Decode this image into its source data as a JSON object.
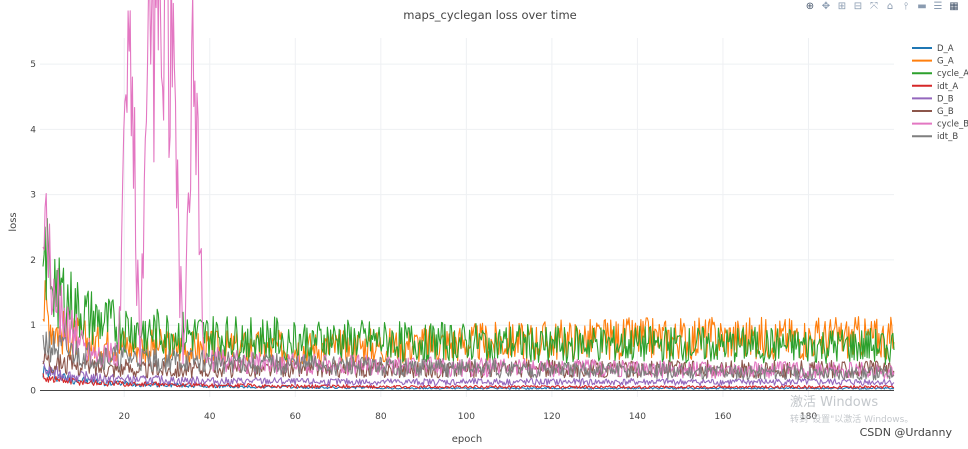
{
  "toolbar": {
    "buttons": [
      {
        "name": "zoom-icon",
        "glyph": "⊕"
      },
      {
        "name": "pan-icon",
        "glyph": "✥"
      },
      {
        "name": "zoom-in-icon",
        "glyph": "⊞"
      },
      {
        "name": "zoom-out-icon",
        "glyph": "⊟"
      },
      {
        "name": "autoscale-icon",
        "glyph": "⤧"
      },
      {
        "name": "reset-axes-icon",
        "glyph": "⌂"
      },
      {
        "name": "spike-lines-icon",
        "glyph": "⫯"
      },
      {
        "name": "hover-closest-icon",
        "glyph": "▬"
      },
      {
        "name": "hover-compare-icon",
        "glyph": "☰"
      },
      {
        "name": "plotly-logo-icon",
        "glyph": "▦"
      }
    ]
  },
  "watermark": {
    "line1": "激活 Windows",
    "line2": "转到\"设置\"以激活 Windows。"
  },
  "credit": "CSDN @Urdanny",
  "chart_data": {
    "type": "line",
    "title": "maps_cyclegan loss over time",
    "xlabel": "epoch",
    "ylabel": "loss",
    "xlim": [
      0.3,
      200
    ],
    "ylim": [
      -0.1,
      5.4
    ],
    "x_ticks": [
      20,
      40,
      60,
      80,
      100,
      120,
      140,
      160,
      180
    ],
    "y_ticks": [
      0,
      1,
      2,
      3,
      4,
      5
    ],
    "grid": true,
    "legend_position": "top-right",
    "x_step": 0.5,
    "x_start": 1,
    "series": [
      {
        "name": "D_A",
        "color": "#1f77b4",
        "values": [
          0.28,
          0.22,
          0.18,
          0.15,
          0.14,
          0.12,
          0.11,
          0.1,
          0.1,
          0.09,
          0.09,
          0.08,
          0.08,
          0.07,
          0.07,
          0.06,
          0.06,
          0.06,
          0.05,
          0.05,
          0.05,
          0.05,
          0.05,
          0.05,
          0.04,
          0.04,
          0.04,
          0.04,
          0.04,
          0.04,
          0.04,
          0.04,
          0.03,
          0.03,
          0.03,
          0.03,
          0.03,
          0.03,
          0.03,
          0.03,
          0.03,
          0.03,
          0.03,
          0.03,
          0.03,
          0.03,
          0.03,
          0.03,
          0.03,
          0.03,
          0.03,
          0.03,
          0.03,
          0.03,
          0.03,
          0.03,
          0.03,
          0.03,
          0.03,
          0.03,
          0.03,
          0.03,
          0.03,
          0.03,
          0.03,
          0.03,
          0.03,
          0.03,
          0.03,
          0.03,
          0.03,
          0.03,
          0.03,
          0.03,
          0.03,
          0.03,
          0.03,
          0.03,
          0.03,
          0.03
        ]
      },
      {
        "name": "G_A",
        "color": "#ff7f0e",
        "values": [
          1.2,
          0.9,
          0.8,
          0.75,
          0.7,
          0.68,
          0.66,
          0.65,
          0.64,
          0.63,
          0.62,
          0.62,
          0.61,
          0.61,
          0.6,
          0.6,
          0.6,
          0.6,
          0.6,
          0.6,
          0.6,
          0.6,
          0.6,
          0.6,
          0.6,
          0.6,
          0.61,
          0.61,
          0.62,
          0.62,
          0.63,
          0.63,
          0.63,
          0.64,
          0.64,
          0.65,
          0.65,
          0.66,
          0.66,
          0.67,
          0.67,
          0.68,
          0.68,
          0.69,
          0.69,
          0.7,
          0.7,
          0.7,
          0.71,
          0.71,
          0.71,
          0.72,
          0.72,
          0.72,
          0.72,
          0.73,
          0.73,
          0.73,
          0.73,
          0.73,
          0.73,
          0.74,
          0.74,
          0.74,
          0.74,
          0.74,
          0.74,
          0.74,
          0.74,
          0.74,
          0.74,
          0.74,
          0.74,
          0.74,
          0.74,
          0.74,
          0.74,
          0.74,
          0.74,
          0.74
        ]
      },
      {
        "name": "cycle_A",
        "color": "#2ca02c",
        "values": [
          1.9,
          1.6,
          1.3,
          1.15,
          1.05,
          0.98,
          0.93,
          0.9,
          0.87,
          0.85,
          0.83,
          0.81,
          0.8,
          0.79,
          0.78,
          0.77,
          0.76,
          0.75,
          0.75,
          0.74,
          0.74,
          0.73,
          0.73,
          0.72,
          0.72,
          0.71,
          0.71,
          0.71,
          0.7,
          0.7,
          0.7,
          0.69,
          0.69,
          0.69,
          0.68,
          0.68,
          0.68,
          0.68,
          0.67,
          0.67,
          0.67,
          0.67,
          0.66,
          0.66,
          0.66,
          0.66,
          0.66,
          0.65,
          0.65,
          0.65,
          0.65,
          0.65,
          0.65,
          0.64,
          0.64,
          0.64,
          0.64,
          0.64,
          0.64,
          0.64,
          0.63,
          0.63,
          0.63,
          0.63,
          0.63,
          0.63,
          0.63,
          0.63,
          0.63,
          0.62,
          0.62,
          0.62,
          0.62,
          0.62,
          0.62,
          0.62,
          0.62,
          0.62,
          0.62,
          0.62
        ]
      },
      {
        "name": "idt_A",
        "color": "#d62728",
        "values": [
          0.2,
          0.16,
          0.14,
          0.13,
          0.12,
          0.11,
          0.1,
          0.1,
          0.09,
          0.09,
          0.09,
          0.08,
          0.08,
          0.08,
          0.08,
          0.07,
          0.07,
          0.07,
          0.07,
          0.07,
          0.06,
          0.06,
          0.06,
          0.06,
          0.06,
          0.06,
          0.06,
          0.06,
          0.06,
          0.06,
          0.05,
          0.05,
          0.05,
          0.05,
          0.05,
          0.05,
          0.05,
          0.05,
          0.05,
          0.05,
          0.05,
          0.05,
          0.05,
          0.05,
          0.05,
          0.05,
          0.05,
          0.05,
          0.05,
          0.05,
          0.05,
          0.05,
          0.05,
          0.05,
          0.05,
          0.05,
          0.05,
          0.05,
          0.05,
          0.05,
          0.05,
          0.05,
          0.05,
          0.05,
          0.05,
          0.05,
          0.05,
          0.05,
          0.05,
          0.05,
          0.05,
          0.05,
          0.05,
          0.05,
          0.05,
          0.05,
          0.05,
          0.05,
          0.05,
          0.05
        ]
      },
      {
        "name": "D_B",
        "color": "#9467bd",
        "values": [
          0.3,
          0.25,
          0.22,
          0.2,
          0.19,
          0.18,
          0.17,
          0.16,
          0.16,
          0.15,
          0.15,
          0.15,
          0.14,
          0.14,
          0.14,
          0.14,
          0.13,
          0.13,
          0.13,
          0.13,
          0.13,
          0.13,
          0.13,
          0.12,
          0.12,
          0.12,
          0.12,
          0.12,
          0.12,
          0.12,
          0.12,
          0.12,
          0.12,
          0.12,
          0.12,
          0.12,
          0.12,
          0.12,
          0.12,
          0.12,
          0.12,
          0.12,
          0.12,
          0.12,
          0.12,
          0.12,
          0.12,
          0.12,
          0.12,
          0.12,
          0.12,
          0.12,
          0.12,
          0.12,
          0.12,
          0.12,
          0.12,
          0.12,
          0.12,
          0.12,
          0.12,
          0.12,
          0.12,
          0.12,
          0.12,
          0.12,
          0.12,
          0.12,
          0.12,
          0.12,
          0.12,
          0.12,
          0.12,
          0.12,
          0.12,
          0.12,
          0.12,
          0.12,
          0.12,
          0.12
        ]
      },
      {
        "name": "G_B",
        "color": "#8c564b",
        "values": [
          0.5,
          0.42,
          0.38,
          0.35,
          0.34,
          0.33,
          0.32,
          0.31,
          0.31,
          0.3,
          0.3,
          0.3,
          0.3,
          0.3,
          0.3,
          0.3,
          0.3,
          0.3,
          0.3,
          0.3,
          0.3,
          0.3,
          0.3,
          0.3,
          0.3,
          0.3,
          0.3,
          0.3,
          0.3,
          0.3,
          0.3,
          0.3,
          0.3,
          0.3,
          0.3,
          0.3,
          0.3,
          0.3,
          0.3,
          0.3,
          0.3,
          0.3,
          0.3,
          0.3,
          0.3,
          0.3,
          0.3,
          0.3,
          0.3,
          0.3,
          0.3,
          0.3,
          0.3,
          0.3,
          0.3,
          0.3,
          0.3,
          0.3,
          0.3,
          0.3,
          0.3,
          0.3,
          0.3,
          0.3,
          0.3,
          0.3,
          0.3,
          0.3,
          0.3,
          0.3,
          0.3,
          0.3,
          0.3,
          0.3,
          0.3,
          0.3,
          0.3,
          0.3,
          0.3,
          0.3
        ]
      },
      {
        "name": "cycle_B",
        "color": "#e377c2",
        "values": [
          2.2,
          1.4,
          1.0,
          0.8,
          0.6,
          0.55,
          0.5,
          0.48,
          5.2,
          0.46,
          5.0,
          4.8,
          4.65,
          0.45,
          4.35,
          0.44,
          0.43,
          0.42,
          0.41,
          0.4,
          0.4,
          0.39,
          0.39,
          0.38,
          0.38,
          0.37,
          0.37,
          0.36,
          0.36,
          0.36,
          0.35,
          0.35,
          0.35,
          0.34,
          0.34,
          0.34,
          0.34,
          0.33,
          0.33,
          0.33,
          0.33,
          0.32,
          0.32,
          0.32,
          0.32,
          0.32,
          0.31,
          0.31,
          0.31,
          0.31,
          0.31,
          0.31,
          0.3,
          0.3,
          0.3,
          0.3,
          0.3,
          0.3,
          0.3,
          0.3,
          0.3,
          0.29,
          0.29,
          0.29,
          0.29,
          0.29,
          0.29,
          0.29,
          0.29,
          0.29,
          0.29,
          0.28,
          0.28,
          0.28,
          0.28,
          0.28,
          0.28,
          0.28,
          0.28,
          0.28
        ]
      },
      {
        "name": "idt_B",
        "color": "#7f7f7f",
        "values": [
          0.7,
          0.6,
          0.55,
          0.52,
          0.5,
          0.48,
          0.47,
          0.46,
          0.45,
          0.44,
          0.43,
          0.42,
          0.42,
          0.41,
          0.41,
          0.4,
          0.4,
          0.39,
          0.39,
          0.38,
          0.38,
          0.37,
          0.37,
          0.36,
          0.36,
          0.35,
          0.35,
          0.35,
          0.34,
          0.34,
          0.34,
          0.33,
          0.33,
          0.33,
          0.32,
          0.32,
          0.32,
          0.31,
          0.31,
          0.31,
          0.31,
          0.3,
          0.3,
          0.3,
          0.3,
          0.29,
          0.29,
          0.29,
          0.29,
          0.28,
          0.28,
          0.28,
          0.28,
          0.28,
          0.27,
          0.27,
          0.27,
          0.27,
          0.27,
          0.26,
          0.26,
          0.26,
          0.26,
          0.26,
          0.26,
          0.25,
          0.25,
          0.25,
          0.25,
          0.25,
          0.25,
          0.24,
          0.24,
          0.24,
          0.24,
          0.24,
          0.24,
          0.24,
          0.24,
          0.24
        ]
      }
    ]
  }
}
